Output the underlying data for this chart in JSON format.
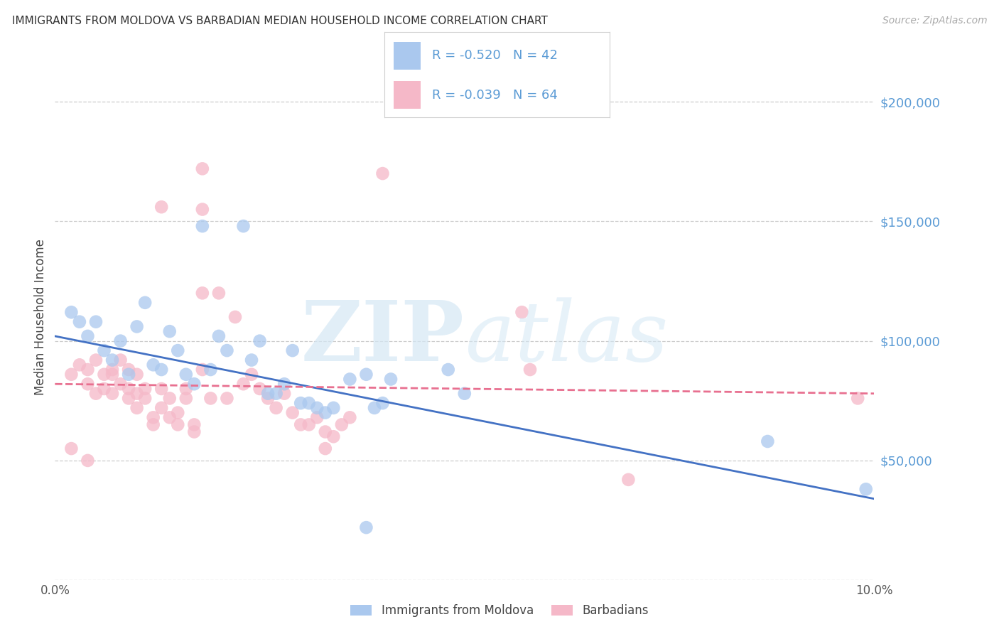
{
  "title": "IMMIGRANTS FROM MOLDOVA VS BARBADIAN MEDIAN HOUSEHOLD INCOME CORRELATION CHART",
  "source": "Source: ZipAtlas.com",
  "ylabel": "Median Household Income",
  "xlim": [
    0.0,
    0.1
  ],
  "ylim": [
    0,
    220000
  ],
  "yticks": [
    0,
    50000,
    100000,
    150000,
    200000
  ],
  "ytick_labels": [
    "",
    "$50,000",
    "$100,000",
    "$150,000",
    "$200,000"
  ],
  "xticks": [
    0.0,
    0.02,
    0.04,
    0.06,
    0.08,
    0.1
  ],
  "xtick_labels": [
    "0.0%",
    "",
    "",
    "",
    "",
    "10.0%"
  ],
  "background_color": "#ffffff",
  "grid_color": "#cccccc",
  "label_color": "#5b9bd5",
  "legend_R_color": "#5b9bd5",
  "legend_N_color": "#5b9bd5",
  "legend_blue_R": "R = -0.520",
  "legend_blue_N": "N = 42",
  "legend_pink_R": "R = -0.039",
  "legend_pink_N": "N = 64",
  "blue_color": "#aac8ee",
  "pink_color": "#f5b8c8",
  "blue_line_color": "#4472c4",
  "pink_line_color": "#e87090",
  "blue_scatter": [
    [
      0.002,
      112000
    ],
    [
      0.003,
      108000
    ],
    [
      0.004,
      102000
    ],
    [
      0.005,
      108000
    ],
    [
      0.006,
      96000
    ],
    [
      0.007,
      92000
    ],
    [
      0.008,
      100000
    ],
    [
      0.009,
      86000
    ],
    [
      0.01,
      106000
    ],
    [
      0.011,
      116000
    ],
    [
      0.012,
      90000
    ],
    [
      0.013,
      88000
    ],
    [
      0.014,
      104000
    ],
    [
      0.015,
      96000
    ],
    [
      0.016,
      86000
    ],
    [
      0.017,
      82000
    ],
    [
      0.018,
      148000
    ],
    [
      0.019,
      88000
    ],
    [
      0.02,
      102000
    ],
    [
      0.021,
      96000
    ],
    [
      0.023,
      148000
    ],
    [
      0.024,
      92000
    ],
    [
      0.025,
      100000
    ],
    [
      0.026,
      78000
    ],
    [
      0.027,
      78000
    ],
    [
      0.028,
      82000
    ],
    [
      0.029,
      96000
    ],
    [
      0.03,
      74000
    ],
    [
      0.031,
      74000
    ],
    [
      0.032,
      72000
    ],
    [
      0.033,
      70000
    ],
    [
      0.034,
      72000
    ],
    [
      0.036,
      84000
    ],
    [
      0.038,
      86000
    ],
    [
      0.039,
      72000
    ],
    [
      0.04,
      74000
    ],
    [
      0.041,
      84000
    ],
    [
      0.048,
      88000
    ],
    [
      0.05,
      78000
    ],
    [
      0.038,
      22000
    ],
    [
      0.087,
      58000
    ],
    [
      0.099,
      38000
    ]
  ],
  "pink_scatter": [
    [
      0.002,
      86000
    ],
    [
      0.003,
      90000
    ],
    [
      0.004,
      88000
    ],
    [
      0.004,
      82000
    ],
    [
      0.005,
      92000
    ],
    [
      0.005,
      78000
    ],
    [
      0.006,
      86000
    ],
    [
      0.006,
      80000
    ],
    [
      0.007,
      86000
    ],
    [
      0.007,
      78000
    ],
    [
      0.007,
      88000
    ],
    [
      0.008,
      92000
    ],
    [
      0.008,
      82000
    ],
    [
      0.009,
      88000
    ],
    [
      0.009,
      80000
    ],
    [
      0.009,
      76000
    ],
    [
      0.01,
      86000
    ],
    [
      0.01,
      78000
    ],
    [
      0.01,
      72000
    ],
    [
      0.011,
      80000
    ],
    [
      0.011,
      76000
    ],
    [
      0.012,
      68000
    ],
    [
      0.012,
      65000
    ],
    [
      0.013,
      80000
    ],
    [
      0.013,
      72000
    ],
    [
      0.014,
      68000
    ],
    [
      0.014,
      76000
    ],
    [
      0.015,
      70000
    ],
    [
      0.015,
      65000
    ],
    [
      0.016,
      76000
    ],
    [
      0.016,
      80000
    ],
    [
      0.017,
      65000
    ],
    [
      0.017,
      62000
    ],
    [
      0.018,
      88000
    ],
    [
      0.018,
      120000
    ],
    [
      0.019,
      76000
    ],
    [
      0.02,
      120000
    ],
    [
      0.021,
      76000
    ],
    [
      0.022,
      110000
    ],
    [
      0.023,
      82000
    ],
    [
      0.024,
      86000
    ],
    [
      0.025,
      80000
    ],
    [
      0.026,
      76000
    ],
    [
      0.027,
      72000
    ],
    [
      0.028,
      78000
    ],
    [
      0.029,
      70000
    ],
    [
      0.03,
      65000
    ],
    [
      0.031,
      65000
    ],
    [
      0.032,
      68000
    ],
    [
      0.033,
      62000
    ],
    [
      0.033,
      55000
    ],
    [
      0.034,
      60000
    ],
    [
      0.035,
      65000
    ],
    [
      0.036,
      68000
    ],
    [
      0.04,
      170000
    ],
    [
      0.018,
      155000
    ],
    [
      0.057,
      112000
    ],
    [
      0.058,
      88000
    ],
    [
      0.07,
      42000
    ],
    [
      0.098,
      76000
    ],
    [
      0.018,
      172000
    ],
    [
      0.013,
      156000
    ],
    [
      0.002,
      55000
    ],
    [
      0.004,
      50000
    ]
  ],
  "blue_trendline_x": [
    0.0,
    0.1
  ],
  "blue_trendline_y": [
    102000,
    34000
  ],
  "pink_trendline_x": [
    0.0,
    0.1
  ],
  "pink_trendline_y": [
    82000,
    78000
  ]
}
